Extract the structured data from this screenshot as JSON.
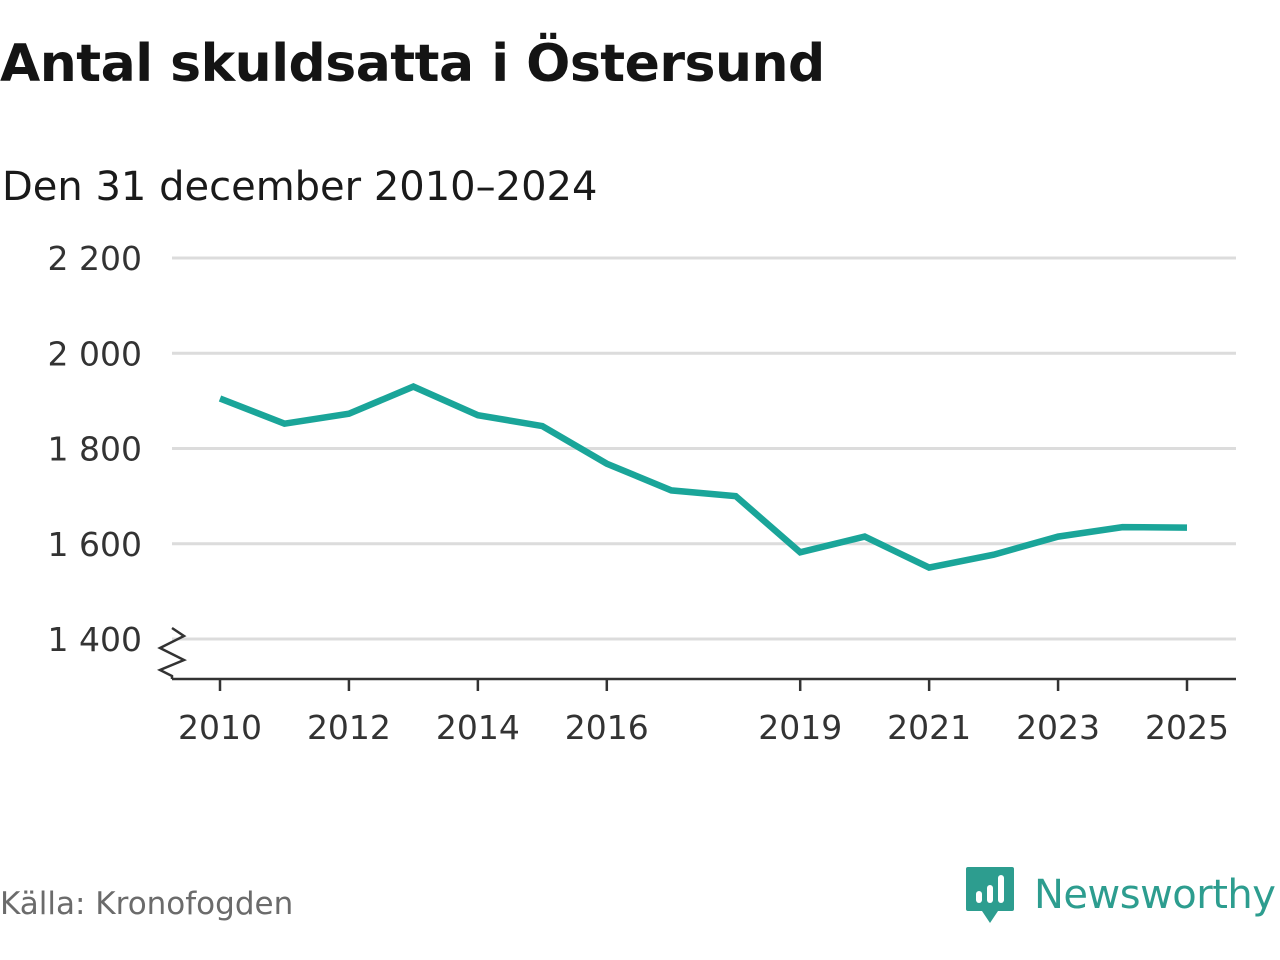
{
  "title": "Antal skuldsatta i Östersund",
  "subtitle": "Den 31 december 2010–2024",
  "source": "Källa: Kronofogden",
  "brand": "Newsworthy",
  "colors": {
    "line": "#1aa599",
    "grid": "#dcdcdc",
    "axis": "#333333",
    "brand": "#2d9d8f"
  },
  "chart_data": {
    "type": "line",
    "title": "Antal skuldsatta i Östersund",
    "subtitle": "Den 31 december 2010–2024",
    "xlabel": "",
    "ylabel": "",
    "x": [
      2010,
      2011,
      2012,
      2013,
      2014,
      2015,
      2016,
      2017,
      2018,
      2019,
      2020,
      2021,
      2022,
      2023,
      2024,
      2025
    ],
    "values": [
      1905,
      1852,
      1873,
      1930,
      1870,
      1847,
      1768,
      1712,
      1700,
      1582,
      1615,
      1550,
      1577,
      1615,
      1635,
      1634
    ],
    "ylim": [
      1400,
      2200
    ],
    "xlim": [
      2010,
      2025
    ],
    "yticks": [
      1400,
      1600,
      1800,
      2000,
      2200
    ],
    "ytick_labels": [
      "1 400",
      "1 600",
      "1 800",
      "2 000",
      "2 200"
    ],
    "xticks": [
      2010,
      2012,
      2014,
      2016,
      2019,
      2021,
      2023,
      2025
    ],
    "xtick_labels": [
      "2010",
      "2012",
      "2014",
      "2016",
      "2019",
      "2021",
      "2023",
      "2025"
    ],
    "grid": true,
    "axis_break": true
  }
}
